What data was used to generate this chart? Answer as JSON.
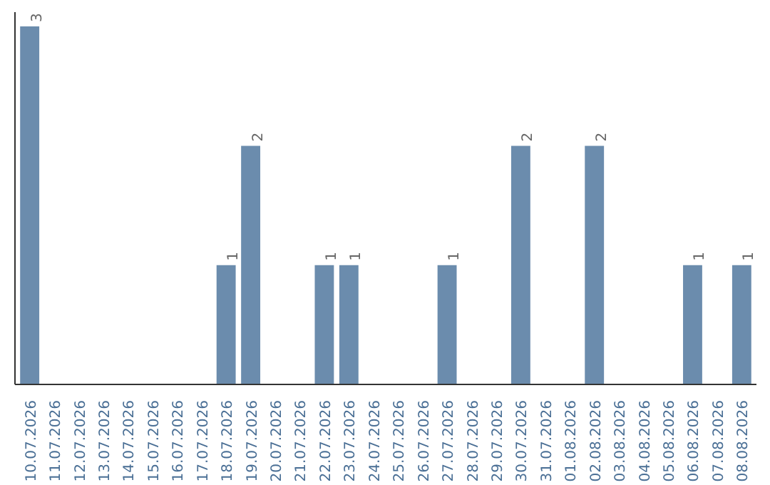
{
  "chart_data": {
    "type": "bar",
    "categories": [
      "10.07.2026",
      "11.07.2026",
      "12.07.2026",
      "13.07.2026",
      "14.07.2026",
      "15.07.2026",
      "16.07.2026",
      "17.07.2026",
      "18.07.2026",
      "19.07.2026",
      "20.07.2026",
      "21.07.2026",
      "22.07.2026",
      "23.07.2026",
      "24.07.2026",
      "25.07.2026",
      "26.07.2026",
      "27.07.2026",
      "28.07.2026",
      "29.07.2026",
      "30.07.2026",
      "31.07.2026",
      "01.08.2026",
      "02.08.2026",
      "03.08.2026",
      "04.08.2026",
      "05.08.2026",
      "06.08.2026",
      "07.08.2026",
      "08.08.2026"
    ],
    "values": [
      3,
      0,
      0,
      0,
      0,
      0,
      0,
      0,
      1,
      2,
      0,
      0,
      1,
      1,
      0,
      0,
      0,
      1,
      0,
      0,
      2,
      0,
      0,
      2,
      0,
      0,
      0,
      1,
      0,
      1
    ],
    "value_labels": [
      "3",
      null,
      null,
      null,
      null,
      null,
      null,
      null,
      "1",
      "2",
      null,
      null,
      "1",
      "1",
      null,
      null,
      null,
      "1",
      null,
      null,
      "2",
      null,
      null,
      "2",
      null,
      null,
      null,
      "1",
      null,
      "1"
    ],
    "color": "#6b8cad",
    "tick_labels": "x",
    "grid": false
  }
}
